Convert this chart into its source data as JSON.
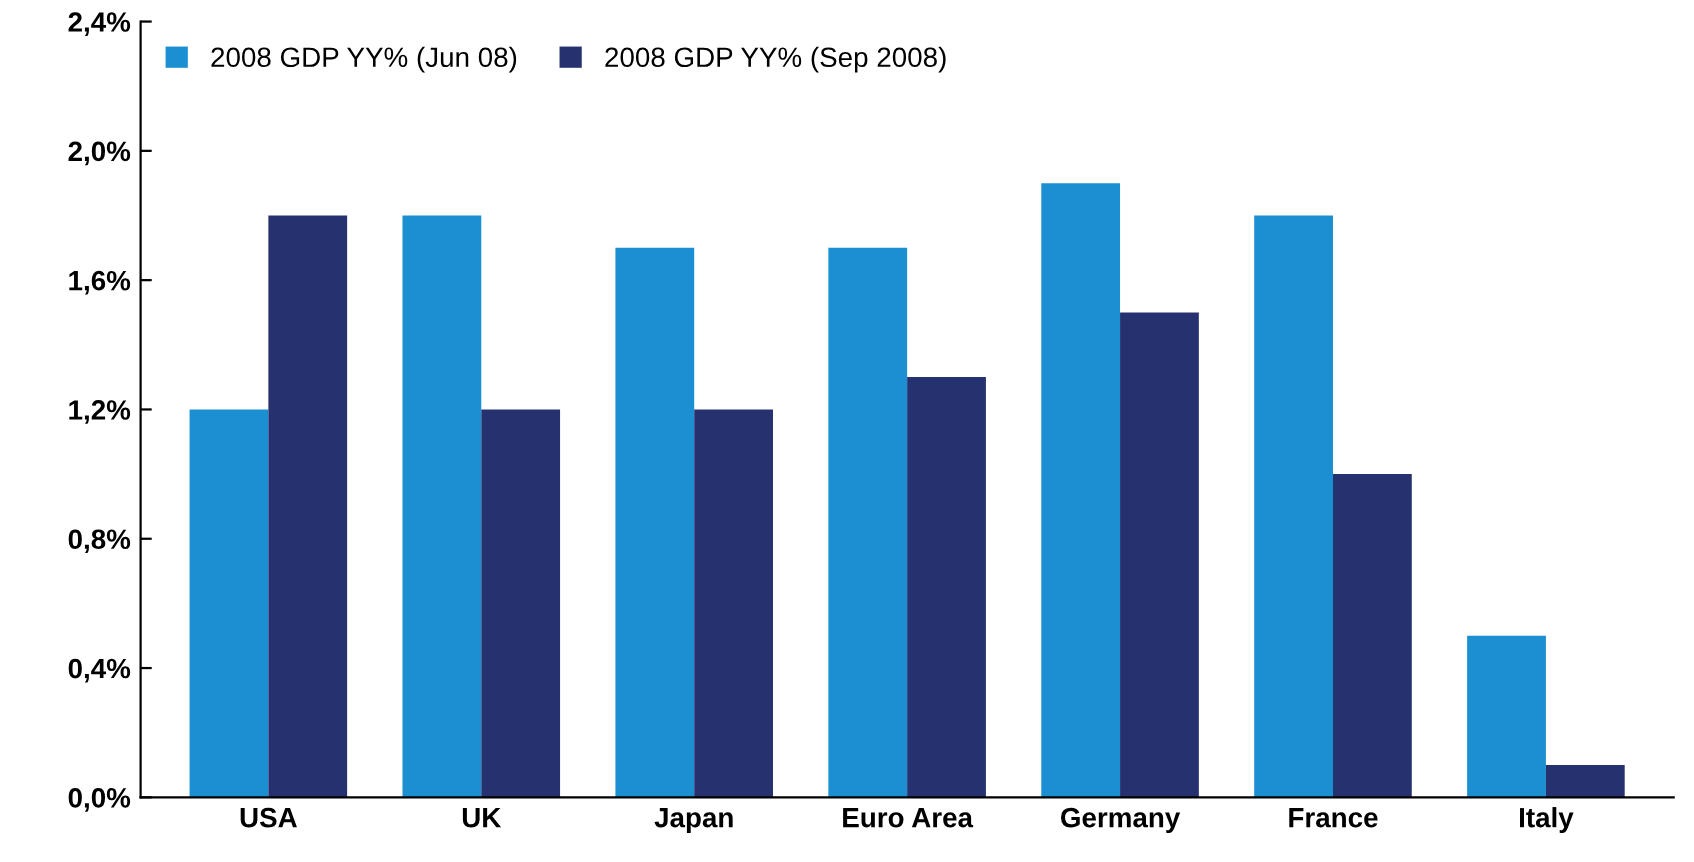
{
  "chart_data": {
    "type": "bar",
    "categories": [
      "USA",
      "UK",
      "Japan",
      "Euro Area",
      "Germany",
      "France",
      "Italy"
    ],
    "series": [
      {
        "name": "2008 GDP YY% (Jun 08)",
        "color": "#1b8fd2",
        "values": [
          1.2,
          1.8,
          1.7,
          1.7,
          1.9,
          1.8,
          0.5
        ]
      },
      {
        "name": "2008 GDP YY% (Sep 2008)",
        "color": "#263270",
        "values": [
          1.8,
          1.2,
          1.2,
          1.3,
          1.5,
          1.0,
          0.1
        ]
      }
    ],
    "ylim": [
      0,
      2.4
    ],
    "yticks": [
      {
        "value": 0,
        "label": "0,0%"
      },
      {
        "value": 0.4,
        "label": "0,4%"
      },
      {
        "value": 0.8,
        "label": "0,8%"
      },
      {
        "value": 1.2,
        "label": "1,2%"
      },
      {
        "value": 1.6,
        "label": "1,6%"
      },
      {
        "value": 2.0,
        "label": "2,0%"
      },
      {
        "value": 2.4,
        "label": "2,4%"
      }
    ],
    "grid": false,
    "legend": "top left"
  }
}
